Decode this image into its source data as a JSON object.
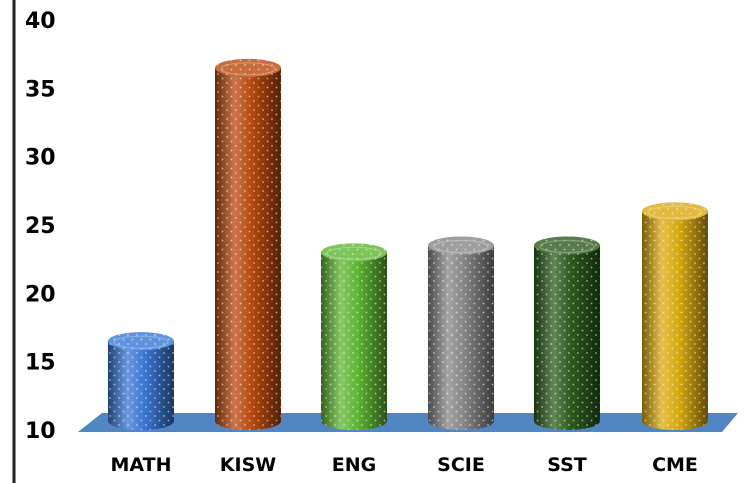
{
  "chart_data": {
    "type": "bar",
    "title": "",
    "xlabel": "",
    "ylabel": "",
    "categories": [
      "MATH",
      "KISW",
      "ENG",
      "SCIE",
      "SST",
      "CME"
    ],
    "values": [
      16.5,
      36.5,
      23,
      23.5,
      23.5,
      26
    ],
    "ylim": [
      10,
      40
    ],
    "yticks": [
      "10",
      "15",
      "20",
      "25",
      "30",
      "35",
      "40"
    ],
    "grid": false,
    "legend": "none",
    "colors": [
      "#3a78d4",
      "#b84a0e",
      "#5fb532",
      "#868686",
      "#2d5c1d",
      "#d9aa10"
    ],
    "floor_color": "#4f86c3"
  }
}
